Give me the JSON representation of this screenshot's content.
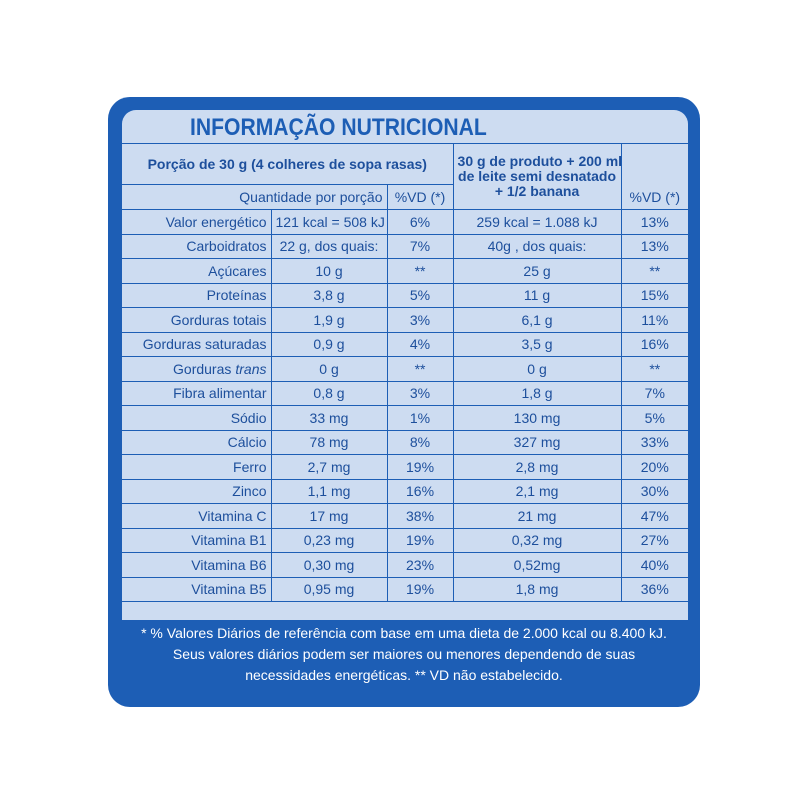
{
  "title": "INFORMAÇÃO NUTRICIONAL",
  "header": {
    "portion": "Porção de 30 g (4 colheres de sopa rasas)",
    "quantity": "Quantidade por porção",
    "vd": "%VD (*)",
    "prepared": [
      "30 g de produto + 200 ml",
      "de leite semi desnatado",
      "+ 1/2 banana"
    ],
    "vd2": "%VD (*)"
  },
  "rows": [
    [
      "Valor energético",
      "121 kcal = 508 kJ",
      "6%",
      "259 kcal = 1.088 kJ",
      "13%"
    ],
    [
      "Carboidratos",
      "22 g, dos quais:",
      "7%",
      "40g , dos quais:",
      "13%"
    ],
    [
      "Açúcares",
      "10 g",
      "**",
      "25 g",
      "**"
    ],
    [
      "Proteínas",
      "3,8 g",
      "5%",
      "11 g",
      "15%"
    ],
    [
      "Gorduras totais",
      "1,9 g",
      "3%",
      "6,1 g",
      "11%"
    ],
    [
      "Gorduras saturadas",
      "0,9 g",
      "4%",
      "3,5 g",
      "16%"
    ],
    [
      [
        "Gorduras",
        "trans"
      ],
      "0 g",
      "**",
      "0 g",
      "**"
    ],
    [
      "Fibra alimentar",
      "0,8 g",
      "3%",
      "1,8 g",
      "7%"
    ],
    [
      "Sódio",
      "33 mg",
      "1%",
      "130 mg",
      "5%"
    ],
    [
      "Cálcio",
      "78 mg",
      "8%",
      "327 mg",
      "33%"
    ],
    [
      "Ferro",
      "2,7 mg",
      "19%",
      "2,8 mg",
      "20%"
    ],
    [
      "Zinco",
      "1,1 mg",
      "16%",
      "2,1 mg",
      "30%"
    ],
    [
      "Vitamina C",
      "17 mg",
      "38%",
      "21 mg",
      "47%"
    ],
    [
      "Vitamina B1",
      "0,23 mg",
      "19%",
      "0,32 mg",
      "27%"
    ],
    [
      "Vitamina B6",
      "0,30 mg",
      "23%",
      "0,52mg",
      "40%"
    ],
    [
      "Vitamina B5",
      "0,95 mg",
      "19%",
      "1,8 mg",
      "36%"
    ]
  ],
  "footer": [
    "* % Valores Diários de referência com base em uma dieta de 2.000 kcal ou 8.400 kJ.",
    "Seus valores diários podem ser maiores ou menores dependendo de suas",
    "necessidades energéticas. ** VD não estabelecido."
  ]
}
